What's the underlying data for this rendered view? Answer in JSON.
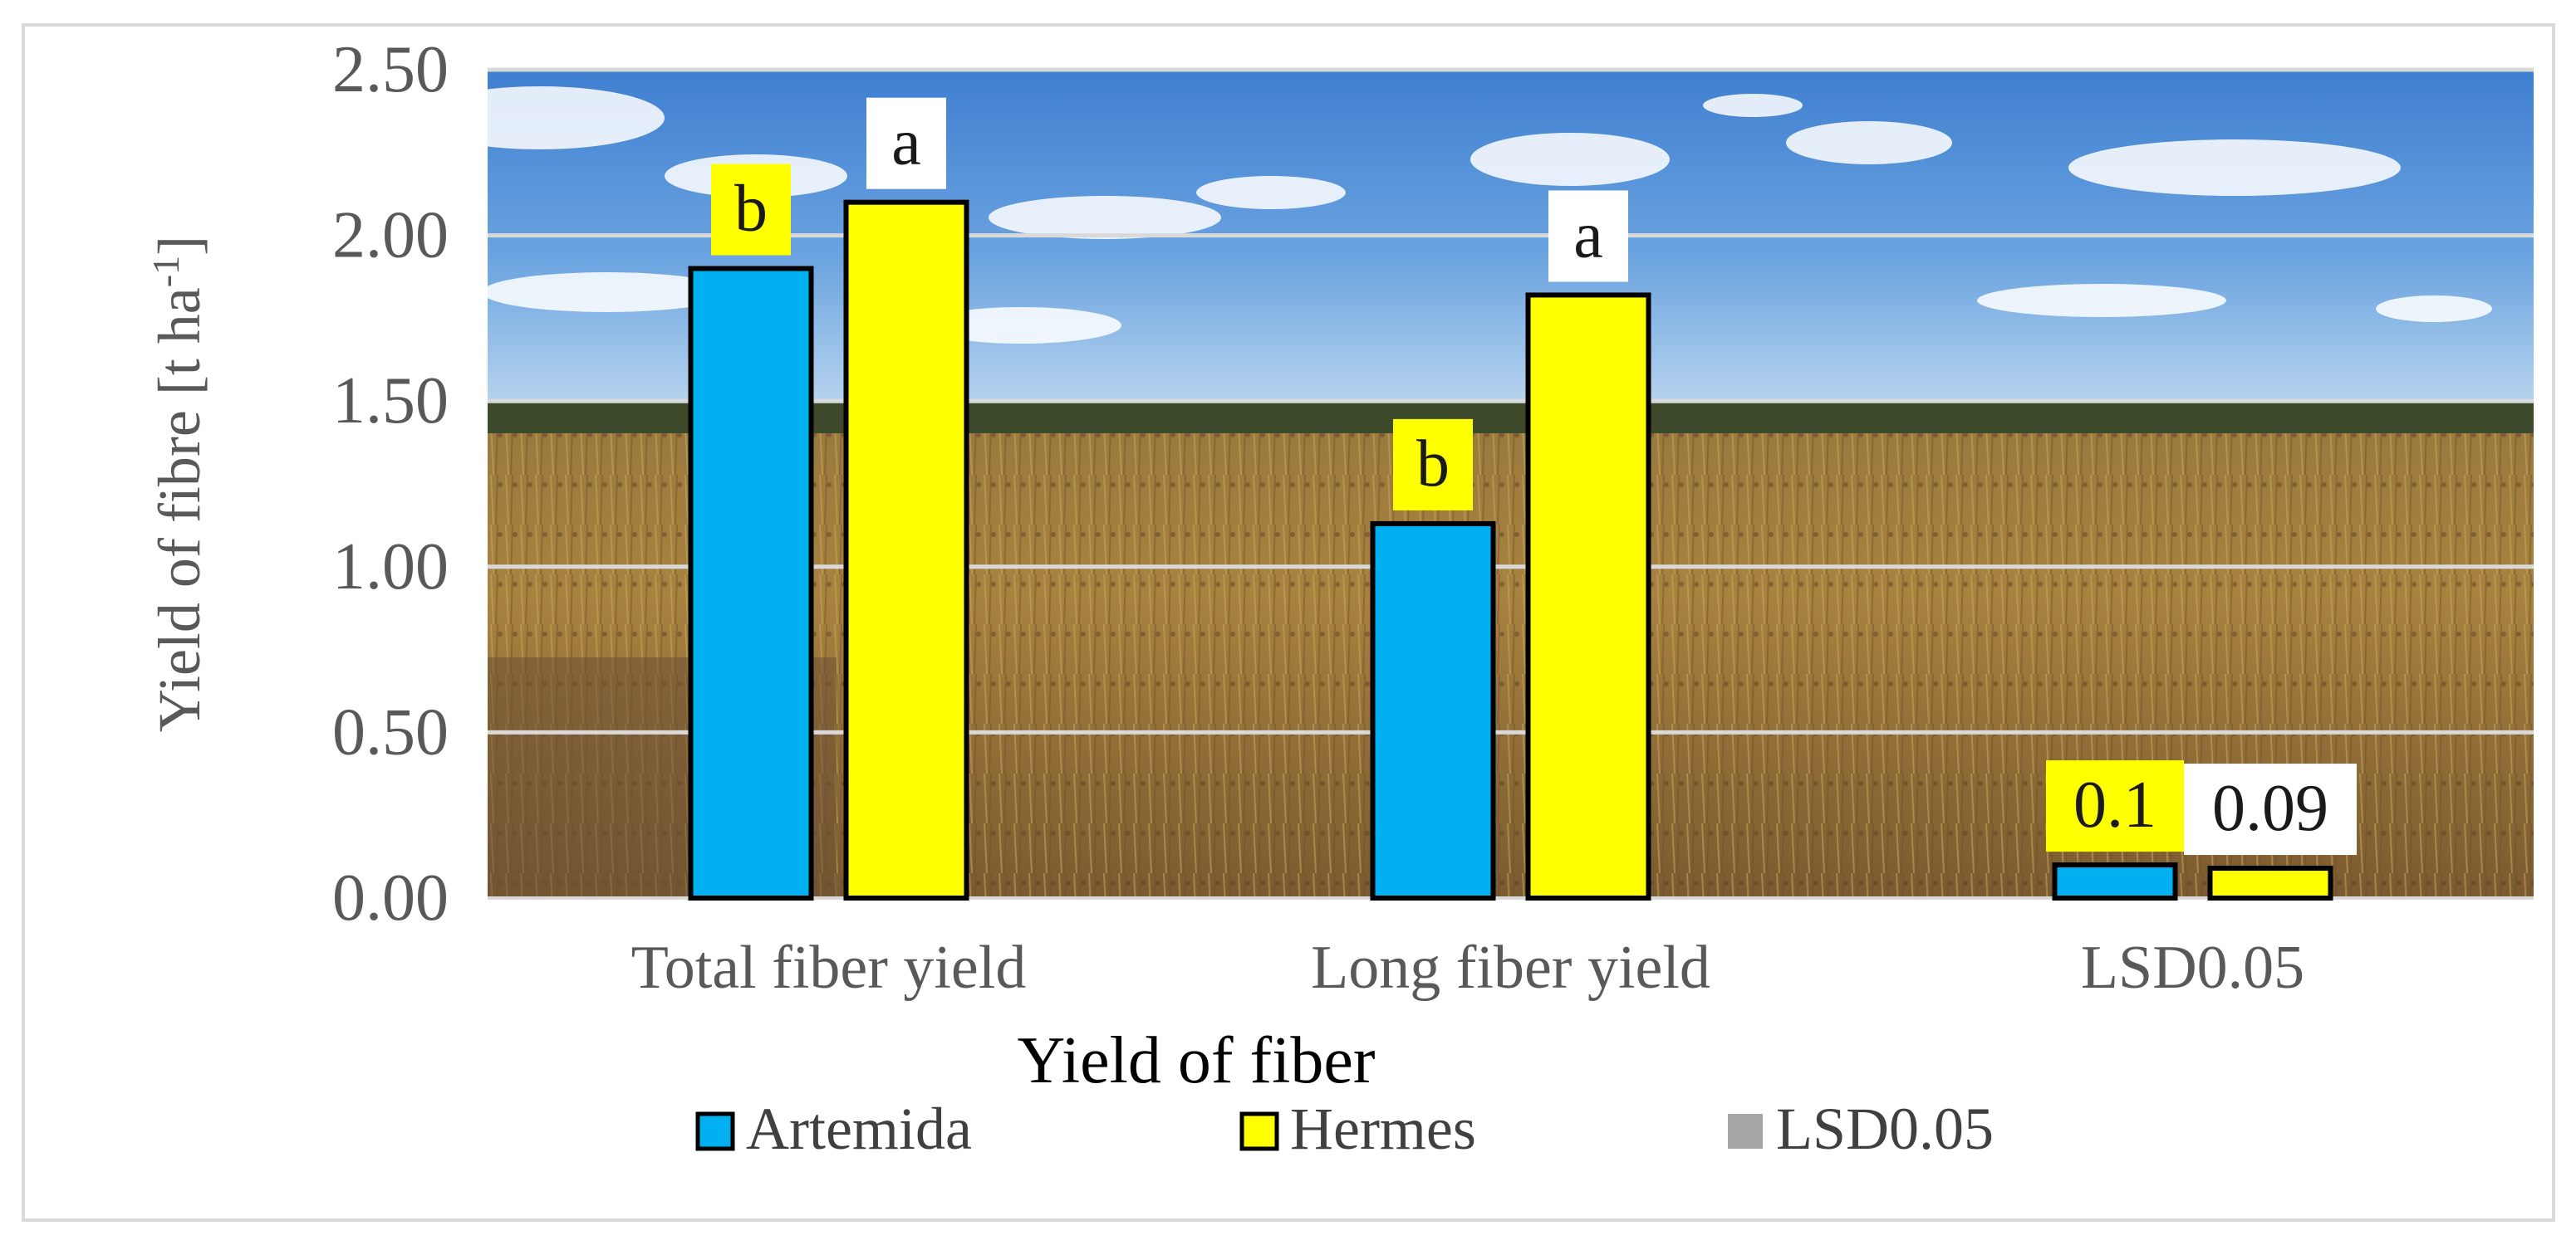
{
  "chart_data": {
    "type": "bar",
    "title": "",
    "xlabel": "Yield of fiber",
    "ylabel": "Yield of fibre [t ha",
    "ylabel_sup": "-1",
    "ylabel_end": "]",
    "categories": [
      "Total fiber yield",
      "Long fiber yield",
      "LSD0.05"
    ],
    "ylim": [
      0,
      2.5
    ],
    "yticks": [
      "0.00",
      "0.50",
      "1.00",
      "1.50",
      "2.00",
      "2.50"
    ],
    "grid": true,
    "legend_position": "bottom",
    "background": "photo of a flax field under blue sky with clouds",
    "series": [
      {
        "name": "Artemida",
        "color": "#00b0f0",
        "values": [
          1.9,
          1.13,
          0.1
        ],
        "labels": [
          "b",
          "b",
          "0.1"
        ],
        "label_bg": [
          "#ffff00",
          "#ffff00",
          "#ffff00"
        ]
      },
      {
        "name": "Hermes",
        "color": "#ffff00",
        "values": [
          2.1,
          1.82,
          0.09
        ],
        "labels": [
          "a",
          "a",
          "0.09"
        ],
        "label_bg": [
          "#ffffff",
          "#ffffff",
          "#ffffff"
        ]
      }
    ],
    "legend_extra": {
      "name": "LSD0.05",
      "color": "#a6a6a6"
    }
  }
}
